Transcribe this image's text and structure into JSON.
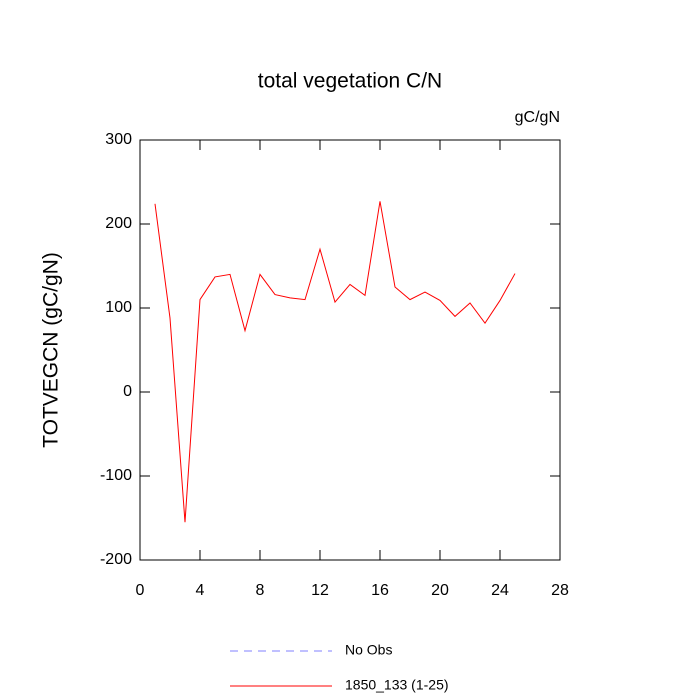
{
  "chart_data": {
    "type": "line",
    "title": "total vegetation C/N",
    "units": "gC/gN",
    "y_label": "TOTVEGCN  (gC/gN)",
    "x": [
      1,
      2,
      3,
      4,
      5,
      6,
      7,
      8,
      9,
      10,
      11,
      12,
      13,
      14,
      15,
      16,
      17,
      18,
      19,
      20,
      21,
      22,
      23,
      24,
      25
    ],
    "series": [
      {
        "name": "No Obs",
        "color": "#8080ff",
        "dashed": true,
        "values": [
          null,
          null,
          null,
          null,
          null,
          null,
          null,
          null,
          null,
          null,
          null,
          null,
          null,
          null,
          null,
          null,
          null,
          null,
          null,
          null,
          null,
          null,
          null,
          null,
          null
        ]
      },
      {
        "name": "1850_133 (1-25)",
        "color": "#ff0000",
        "dashed": false,
        "values": [
          224,
          88,
          -155,
          110,
          137,
          140,
          73,
          140,
          116,
          112,
          110,
          170,
          107,
          128,
          115,
          227,
          125,
          110,
          119,
          109,
          90,
          106,
          82,
          109,
          141
        ]
      }
    ],
    "xlim": [
      0,
      28
    ],
    "xticks": [
      0,
      4,
      8,
      12,
      16,
      20,
      24,
      28
    ],
    "ylim": [
      -200,
      300
    ],
    "yticks": [
      -200,
      -100,
      0,
      100,
      200,
      300
    ]
  }
}
